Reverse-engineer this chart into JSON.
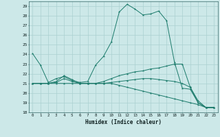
{
  "xlabel": "Humidex (Indice chaleur)",
  "bg_color": "#cce8e8",
  "grid_color": "#aad0d0",
  "line_color": "#1a7a6a",
  "xlim": [
    -0.5,
    23.5
  ],
  "ylim": [
    18,
    29.5
  ],
  "xticks": [
    0,
    1,
    2,
    3,
    4,
    5,
    6,
    7,
    8,
    9,
    10,
    11,
    12,
    13,
    14,
    15,
    16,
    17,
    18,
    19,
    20,
    21,
    22,
    23
  ],
  "yticks": [
    18,
    19,
    20,
    21,
    22,
    23,
    24,
    25,
    26,
    27,
    28,
    29
  ],
  "line1_x": [
    0,
    1,
    2,
    3,
    4,
    5,
    6,
    7,
    8,
    9,
    10,
    11,
    12,
    13,
    14,
    15,
    16,
    17,
    18,
    19,
    20,
    21,
    22,
    23
  ],
  "line1_y": [
    24.1,
    22.9,
    21.1,
    21.5,
    21.7,
    21.3,
    21.1,
    21.2,
    22.9,
    23.8,
    25.3,
    28.4,
    29.2,
    28.7,
    28.1,
    28.2,
    28.5,
    27.5,
    23.2,
    20.5,
    20.4,
    19.0,
    18.5,
    18.5
  ],
  "line2_x": [
    0,
    1,
    2,
    3,
    4,
    5,
    6,
    7,
    8,
    9,
    10,
    11,
    12,
    13,
    14,
    15,
    16,
    17,
    18,
    19,
    20,
    21,
    22,
    23
  ],
  "line2_y": [
    21.0,
    21.0,
    21.0,
    21.1,
    21.5,
    21.2,
    21.0,
    21.0,
    21.0,
    21.2,
    21.5,
    21.8,
    22.0,
    22.2,
    22.3,
    22.5,
    22.6,
    22.8,
    23.0,
    23.0,
    20.6,
    19.0,
    18.5,
    18.5
  ],
  "line3_x": [
    0,
    1,
    2,
    3,
    4,
    5,
    6,
    7,
    8,
    9,
    10,
    11,
    12,
    13,
    14,
    15,
    16,
    17,
    18,
    19,
    20,
    21,
    22,
    23
  ],
  "line3_y": [
    21.0,
    21.0,
    21.0,
    21.2,
    21.8,
    21.4,
    21.0,
    21.0,
    21.0,
    21.0,
    21.1,
    21.2,
    21.3,
    21.4,
    21.5,
    21.5,
    21.4,
    21.3,
    21.2,
    21.0,
    20.6,
    19.2,
    18.5,
    18.5
  ],
  "line4_x": [
    0,
    1,
    2,
    3,
    4,
    5,
    6,
    7,
    8,
    9,
    10,
    11,
    12,
    13,
    14,
    15,
    16,
    17,
    18,
    19,
    20,
    21,
    22,
    23
  ],
  "line4_y": [
    21.0,
    21.0,
    21.0,
    21.0,
    21.0,
    21.0,
    21.0,
    21.0,
    21.0,
    21.0,
    21.0,
    20.8,
    20.6,
    20.4,
    20.2,
    20.0,
    19.8,
    19.6,
    19.4,
    19.2,
    19.0,
    18.8,
    18.5,
    18.5
  ]
}
